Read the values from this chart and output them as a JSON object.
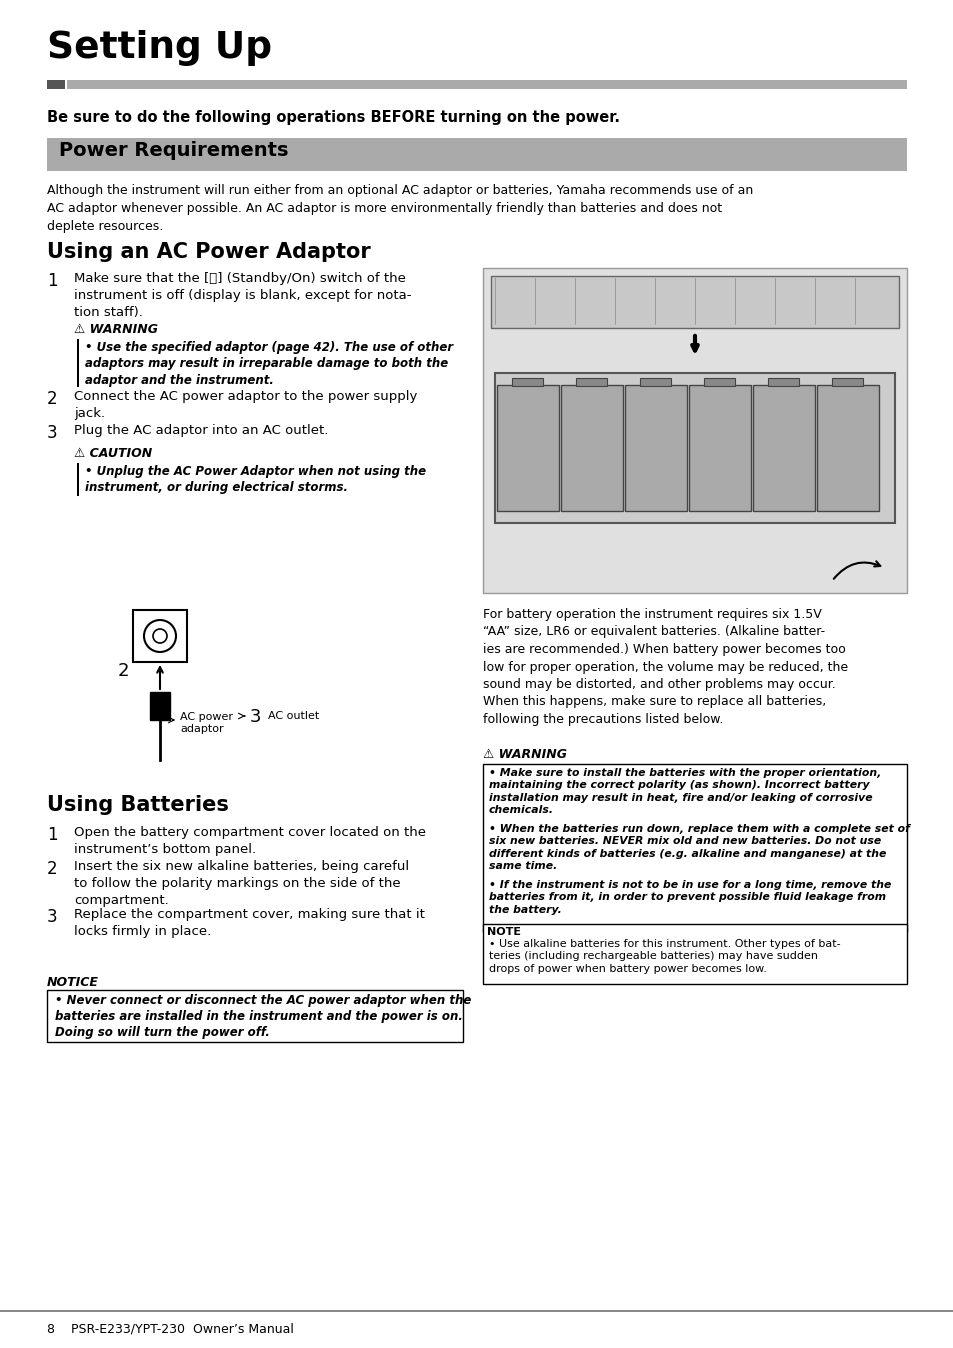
{
  "page_bg": "#ffffff",
  "title": "Setting Up",
  "intro_bold": "Be sure to do the following operations BEFORE turning on the power.",
  "section_title": "Power Requirements",
  "section_intro": "Although the instrument will run either from an optional AC adaptor or batteries, Yamaha recommends use of an\nAC adaptor whenever possible. An AC adaptor is more environmentally friendly than batteries and does not\ndeplete resources.",
  "ac_heading": "Using an AC Power Adaptor",
  "ac_step1": "Make sure that the [⭘] (Standby/On) switch of the\ninstrument is off (display is blank, except for nota-\ntion staff).",
  "ac_step2": "Connect the AC power adaptor to the power supply\njack.",
  "ac_step3": "Plug the AC adaptor into an AC outlet.",
  "warning1_text": "Use the specified adaptor (page 42). The use of other\nadaptors may result in irreparable damage to both the\nadaptor and the instrument.",
  "caution_text": "Unplug the AC Power Adaptor when not using the\ninstrument, or during electrical storms.",
  "batteries_heading": "Using Batteries",
  "bat_step1": "Open the battery compartment cover located on the\ninstrument’s bottom panel.",
  "bat_step2": "Insert the six new alkaline batteries, being careful\nto follow the polarity markings on the side of the\ncompartment.",
  "bat_step3": "Replace the compartment cover, making sure that it\nlocks firmly in place.",
  "notice_text": "Never connect or disconnect the AC power adaptor when the\nbatteries are installed in the instrument and the power is on.\nDoing so will turn the power off.",
  "battery_right_text": "For battery operation the instrument requires six 1.5V\n“AA” size, LR6 or equivalent batteries. (Alkaline batter-\nies are recommended.) When battery power becomes too\nlow for proper operation, the volume may be reduced, the\nsound may be distorted, and other problems may occur.\nWhen this happens, make sure to replace all batteries,\nfollowing the precautions listed below.",
  "warning2_b1": "Make sure to install the batteries with the proper orientation,\nmaintaining the correct polarity (as shown). Incorrect battery\ninstallation may result in heat, fire and/or leaking of corrosive\nchemicals.",
  "warning2_b2": "When the batteries run down, replace them with a complete set of\nsix new batteries. NEVER mix old and new batteries. Do not use\ndifferent kinds of batteries (e.g. alkaline and manganese) at the\nsame time.",
  "warning2_b3": "If the instrument is not to be in use for a long time, remove the\nbatteries from it, in order to prevent possible fluid leakage from\nthe battery.",
  "note_text": "Use alkaline batteries for this instrument. Other types of bat-\nteries (including rechargeable batteries) may have sudden\ndrops of power when battery power becomes low.",
  "footer": "8    PSR-E233/YPT-230  Owner’s Manual",
  "lm": 47,
  "rm": 907,
  "col_split": 478
}
